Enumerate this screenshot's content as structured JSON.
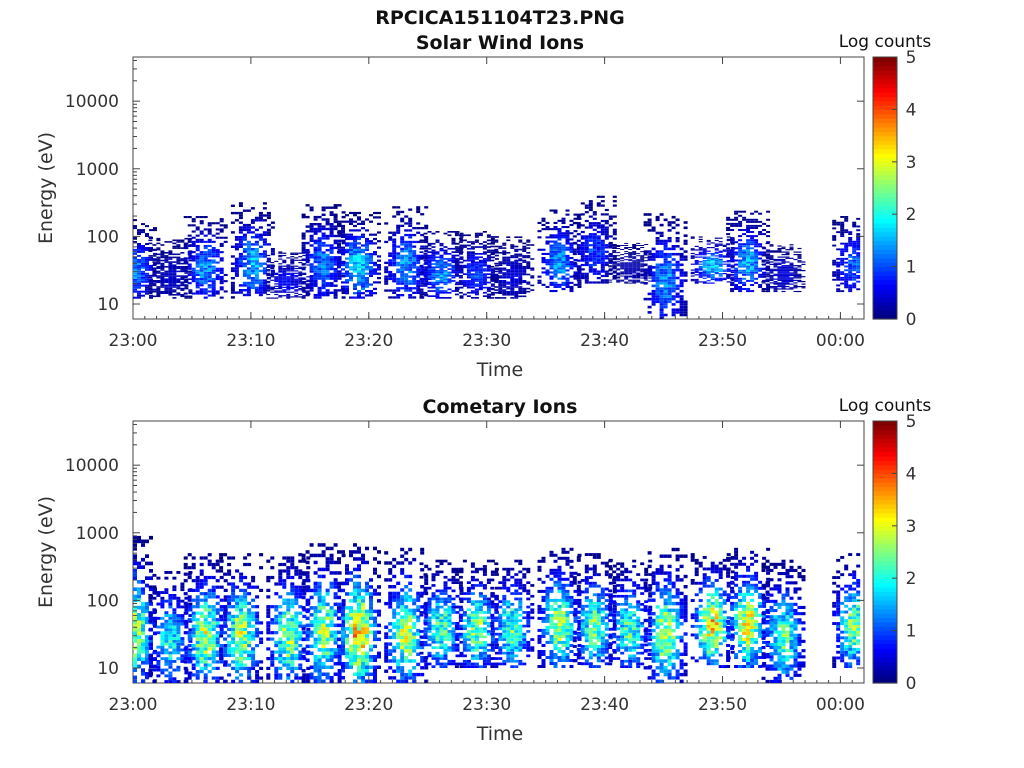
{
  "figure": {
    "title": "RPCICA151104T23.PNG"
  },
  "chart_data": [
    {
      "type": "heatmap",
      "title": "Solar Wind Ions",
      "xlabel": "Time",
      "ylabel": "Energy (eV)",
      "x_ticks": [
        "23:00",
        "23:10",
        "23:20",
        "23:30",
        "23:40",
        "23:50",
        "00:00"
      ],
      "y_ticks": [
        "10",
        "100",
        "1000",
        "10000"
      ],
      "y_scale": "log",
      "ylim": [
        6,
        45000
      ],
      "xlim": [
        "23:00",
        "00:02"
      ],
      "colorbar": {
        "label": "Log counts",
        "range": [
          0,
          5
        ],
        "ticks": [
          "0",
          "1",
          "2",
          "3",
          "4",
          "5"
        ],
        "colormap": "jet"
      },
      "intensity_description": "mostly low counts (0-1.5 log) in periodic bursts between ~10 and ~300 eV",
      "bursts": [
        {
          "t": "23:00",
          "emin": 12,
          "emax": 180,
          "peak": 1.4
        },
        {
          "t": "23:03",
          "emin": 12,
          "emax": 100,
          "peak": 0.4
        },
        {
          "t": "23:06",
          "emin": 12,
          "emax": 200,
          "peak": 1.5
        },
        {
          "t": "23:10",
          "emin": 12,
          "emax": 320,
          "peak": 1.6
        },
        {
          "t": "23:13",
          "emin": 12,
          "emax": 60,
          "peak": 0.7
        },
        {
          "t": "23:16",
          "emin": 12,
          "emax": 300,
          "peak": 1.3
        },
        {
          "t": "23:19",
          "emin": 12,
          "emax": 230,
          "peak": 2.0
        },
        {
          "t": "23:23",
          "emin": 12,
          "emax": 280,
          "peak": 1.5
        },
        {
          "t": "23:26",
          "emin": 12,
          "emax": 120,
          "peak": 1.5
        },
        {
          "t": "23:29",
          "emin": 12,
          "emax": 120,
          "peak": 1.0
        },
        {
          "t": "23:32",
          "emin": 12,
          "emax": 100,
          "peak": 0.5
        },
        {
          "t": "23:36",
          "emin": 15,
          "emax": 250,
          "peak": 1.5
        },
        {
          "t": "23:39",
          "emin": 20,
          "emax": 400,
          "peak": 1.0
        },
        {
          "t": "23:42",
          "emin": 20,
          "emax": 80,
          "peak": 0.3
        },
        {
          "t": "23:45",
          "emin": 6,
          "emax": 220,
          "peak": 1.5
        },
        {
          "t": "23:49",
          "emin": 20,
          "emax": 100,
          "peak": 1.8
        },
        {
          "t": "23:52",
          "emin": 15,
          "emax": 240,
          "peak": 1.6
        },
        {
          "t": "23:55",
          "emin": 15,
          "emax": 80,
          "peak": 0.5
        },
        {
          "t": "00:01",
          "emin": 15,
          "emax": 200,
          "peak": 1.2
        }
      ]
    },
    {
      "type": "heatmap",
      "title": "Cometary Ions",
      "xlabel": "Time",
      "ylabel": "Energy (eV)",
      "x_ticks": [
        "23:00",
        "23:10",
        "23:20",
        "23:30",
        "23:40",
        "23:50",
        "00:00"
      ],
      "y_ticks": [
        "10",
        "100",
        "1000",
        "10000"
      ],
      "y_scale": "log",
      "ylim": [
        6,
        45000
      ],
      "xlim": [
        "23:00",
        "00:02"
      ],
      "colorbar": {
        "label": "Log counts",
        "range": [
          0,
          5
        ],
        "ticks": [
          "0",
          "1",
          "2",
          "3",
          "4",
          "5"
        ],
        "colormap": "jet"
      },
      "intensity_description": "periodic bursts from ~6 eV to ~600 eV, peak counts near 30-40 eV reaching ~3.5 log",
      "bursts": [
        {
          "t": "23:00",
          "emin": 6,
          "emax": 900,
          "peak": 2.8
        },
        {
          "t": "23:03",
          "emin": 6,
          "emax": 300,
          "peak": 2.2
        },
        {
          "t": "23:06",
          "emin": 6,
          "emax": 500,
          "peak": 3.0
        },
        {
          "t": "23:09",
          "emin": 6,
          "emax": 500,
          "peak": 3.0
        },
        {
          "t": "23:13",
          "emin": 6,
          "emax": 500,
          "peak": 2.8
        },
        {
          "t": "23:16",
          "emin": 6,
          "emax": 700,
          "peak": 2.9
        },
        {
          "t": "23:19",
          "emin": 6,
          "emax": 700,
          "peak": 3.8
        },
        {
          "t": "23:23",
          "emin": 6,
          "emax": 600,
          "peak": 3.0
        },
        {
          "t": "23:26",
          "emin": 10,
          "emax": 400,
          "peak": 2.5
        },
        {
          "t": "23:29",
          "emin": 10,
          "emax": 400,
          "peak": 2.8
        },
        {
          "t": "23:32",
          "emin": 10,
          "emax": 400,
          "peak": 2.5
        },
        {
          "t": "23:36",
          "emin": 10,
          "emax": 600,
          "peak": 3.0
        },
        {
          "t": "23:39",
          "emin": 10,
          "emax": 500,
          "peak": 2.6
        },
        {
          "t": "23:42",
          "emin": 10,
          "emax": 400,
          "peak": 2.5
        },
        {
          "t": "23:45",
          "emin": 6,
          "emax": 600,
          "peak": 3.0
        },
        {
          "t": "23:49",
          "emin": 10,
          "emax": 500,
          "peak": 3.4
        },
        {
          "t": "23:52",
          "emin": 10,
          "emax": 600,
          "peak": 3.3
        },
        {
          "t": "23:55",
          "emin": 6,
          "emax": 400,
          "peak": 2.5
        },
        {
          "t": "00:01",
          "emin": 10,
          "emax": 500,
          "peak": 2.7
        }
      ]
    }
  ]
}
